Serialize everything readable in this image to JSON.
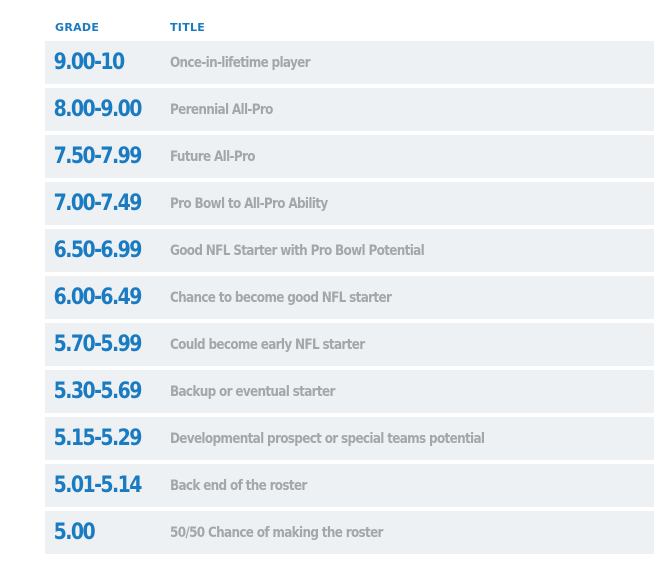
{
  "colors": {
    "accent": "#1a7bc1",
    "row_background": "#eef1f4",
    "title_text": "#a3a7ab"
  },
  "table": {
    "headers": {
      "grade": "GRADE",
      "title": "TITLE"
    },
    "rows": [
      {
        "grade": "9.00-10",
        "title": "Once-in-lifetime player"
      },
      {
        "grade": "8.00-9.00",
        "title": "Perennial All-Pro"
      },
      {
        "grade": "7.50-7.99",
        "title": "Future All-Pro"
      },
      {
        "grade": "7.00-7.49",
        "title": "Pro Bowl to All-Pro Ability"
      },
      {
        "grade": "6.50-6.99",
        "title": "Good NFL Starter with Pro Bowl Potential"
      },
      {
        "grade": "6.00-6.49",
        "title": "Chance to become good NFL starter"
      },
      {
        "grade": "5.70-5.99",
        "title": "Could become early NFL starter"
      },
      {
        "grade": "5.30-5.69",
        "title": "Backup or eventual starter"
      },
      {
        "grade": "5.15-5.29",
        "title": "Developmental prospect or special teams potential"
      },
      {
        "grade": "5.01-5.14",
        "title": "Back end of the roster"
      },
      {
        "grade": "5.00",
        "title": "50/50 Chance of making the roster"
      }
    ]
  }
}
